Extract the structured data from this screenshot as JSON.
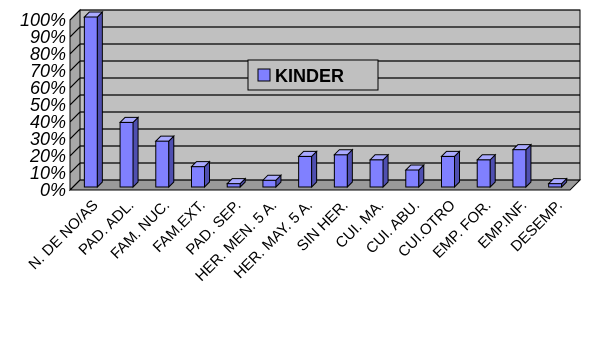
{
  "chart_data": {
    "type": "bar",
    "categories": [
      "N. DE NO/AS",
      "PAD. ADL.",
      "FAM. NUC.",
      "FAM.EXT.",
      "PAD. SEP.",
      "HER. MEN. 5 A.",
      "HER. MAY. 5 A.",
      "SIN HER.",
      "CUI. MA.",
      "CUI. ABU.",
      "CUI.OTRO",
      "EMP. FOR.",
      "EMP.INF.",
      "DESEMP."
    ],
    "series": [
      {
        "name": "KINDER",
        "values": [
          100,
          38,
          27,
          12,
          2,
          4,
          18,
          19,
          16,
          10,
          18,
          16,
          22,
          2
        ]
      }
    ],
    "y_ticks": [
      "0%",
      "10%",
      "20%",
      "30%",
      "40%",
      "50%",
      "60%",
      "70%",
      "80%",
      "90%",
      "100%"
    ],
    "ylim": [
      0,
      100
    ],
    "title": "",
    "xlabel": "",
    "ylabel": "",
    "grid": true,
    "legend_position": "center",
    "colors": {
      "plot_background": "#c0c0c0",
      "bar_front": "#8080ff",
      "bar_side": "#4f4fb0",
      "bar_top": "#aaaaff",
      "gridline": "#000000"
    }
  }
}
